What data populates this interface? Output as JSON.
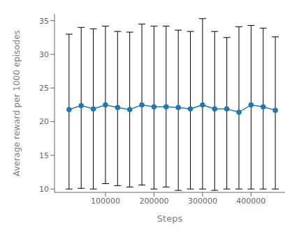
{
  "chart_data": {
    "type": "line",
    "xlabel": "Steps",
    "ylabel": "Average reward per 1000 episodes",
    "x": [
      25000,
      50000,
      75000,
      100000,
      125000,
      150000,
      175000,
      200000,
      225000,
      250000,
      275000,
      300000,
      325000,
      350000,
      375000,
      400000,
      425000,
      450000
    ],
    "values": [
      21.8,
      22.4,
      21.9,
      22.5,
      22.1,
      21.8,
      22.5,
      22.2,
      22.2,
      22.1,
      21.9,
      22.5,
      21.9,
      21.9,
      21.4,
      22.5,
      22.2,
      21.7
    ],
    "upper_errors": [
      11.2,
      11.6,
      11.9,
      11.7,
      11.3,
      11.5,
      12.0,
      12.0,
      12.0,
      11.5,
      11.5,
      12.8,
      11.5,
      10.6,
      12.7,
      11.8,
      11.7,
      10.9
    ],
    "lower_errors": [
      11.8,
      12.3,
      11.9,
      11.7,
      11.6,
      11.5,
      11.9,
      12.2,
      11.9,
      12.3,
      11.9,
      12.5,
      12.1,
      11.9,
      11.4,
      12.5,
      12.2,
      11.7
    ],
    "color": "#1f77b4",
    "marker": "circle",
    "line_style": "solid",
    "xlim": [
      -5000,
      470000
    ],
    "ylim": [
      9.5,
      36
    ],
    "xticks": [
      100000,
      200000,
      300000,
      400000
    ],
    "yticks": [
      10,
      15,
      20,
      25,
      30,
      35
    ]
  }
}
